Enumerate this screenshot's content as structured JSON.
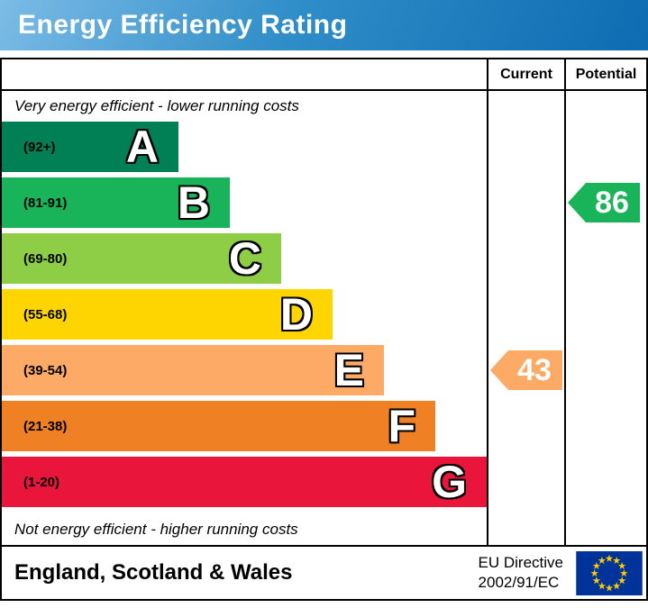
{
  "header": {
    "title": "Energy Efficiency Rating"
  },
  "table": {
    "columns": {
      "current": "Current",
      "potential": "Potential"
    },
    "top_note": "Very energy efficient - lower running costs",
    "bottom_note": "Not energy efficient - higher running costs"
  },
  "bands": [
    {
      "letter": "A",
      "range": "(92+)",
      "color": "#008054"
    },
    {
      "letter": "B",
      "range": "(81-91)",
      "color": "#19b459"
    },
    {
      "letter": "C",
      "range": "(69-80)",
      "color": "#8dce46"
    },
    {
      "letter": "D",
      "range": "(55-68)",
      "color": "#ffd500"
    },
    {
      "letter": "E",
      "range": "(39-54)",
      "color": "#fcaa65"
    },
    {
      "letter": "F",
      "range": "(21-38)",
      "color": "#ef8023"
    },
    {
      "letter": "G",
      "range": "(1-20)",
      "color": "#e9153b"
    }
  ],
  "ratings": {
    "current": {
      "value": "43",
      "band": "E",
      "color": "#fcaa65"
    },
    "potential": {
      "value": "86",
      "band": "B",
      "color": "#19b459"
    }
  },
  "footer": {
    "region": "England, Scotland & Wales",
    "directive_line1": "EU Directive",
    "directive_line2": "2002/91/EC",
    "flag_background": "#003399",
    "flag_star_color": "#ffcc00"
  },
  "chart_data": {
    "type": "bar",
    "orientation": "horizontal",
    "title": "Energy Efficiency Rating",
    "categories": [
      "A",
      "B",
      "C",
      "D",
      "E",
      "F",
      "G"
    ],
    "band_ranges": [
      "92+",
      "81-91",
      "69-80",
      "55-68",
      "39-54",
      "21-38",
      "1-20"
    ],
    "band_colors": [
      "#008054",
      "#19b459",
      "#8dce46",
      "#ffd500",
      "#fcaa65",
      "#ef8023",
      "#e9153b"
    ],
    "scale_min": 1,
    "scale_max": 100,
    "markers": [
      {
        "name": "Current",
        "value": 43,
        "band": "E",
        "color": "#fcaa65"
      },
      {
        "name": "Potential",
        "value": 86,
        "band": "B",
        "color": "#19b459"
      }
    ],
    "annotations": [
      "Very energy efficient - lower running costs",
      "Not energy efficient - higher running costs"
    ],
    "region": "England, Scotland & Wales",
    "directive": "EU Directive 2002/91/EC"
  }
}
